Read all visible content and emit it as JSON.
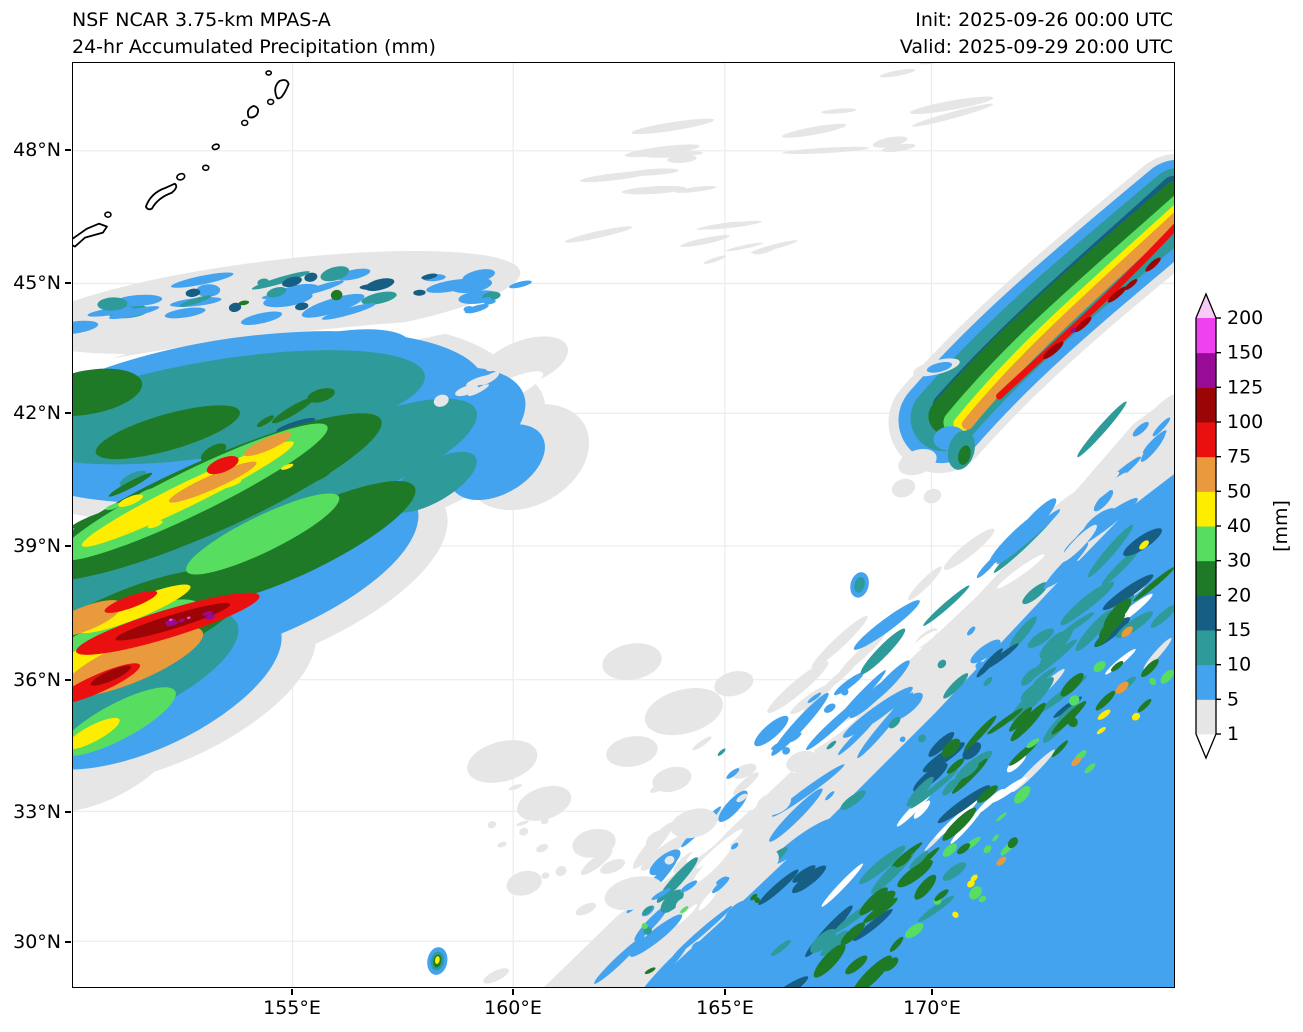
{
  "header": {
    "title_line1": "NSF NCAR 3.75-km MPAS-A",
    "title_line2": "24-hr Accumulated Precipitation (mm)",
    "init_label": "Init: 2025-09-26 00:00 UTC",
    "valid_label": "Valid: 2025-09-29 20:00 UTC"
  },
  "map": {
    "x_tick_labels": [
      "155°E",
      "160°E",
      "165°E",
      "170°E"
    ],
    "y_tick_labels": [
      "48°N",
      "45°N",
      "42°N",
      "39°N",
      "36°N",
      "33°N",
      "30°N"
    ]
  },
  "colorbar": {
    "unit_label": "[mm]",
    "tick_labels": [
      "1",
      "5",
      "10",
      "15",
      "20",
      "30",
      "40",
      "50",
      "75",
      "100",
      "125",
      "150",
      "200"
    ],
    "levels": [
      1,
      5,
      10,
      15,
      20,
      30,
      40,
      50,
      75,
      100,
      125,
      150,
      200
    ],
    "segment_colors": [
      "#e6e6e6",
      "#44a3ef",
      "#2f9a9a",
      "#175e85",
      "#1f7a28",
      "#57de60",
      "#ffed00",
      "#e89a3c",
      "#eb1010",
      "#9c0505",
      "#970b97",
      "#ee42ee"
    ],
    "under_arrow_color": "#ffffff",
    "over_arrow_color": "#f6ccf6"
  },
  "chart_data": {
    "type": "heatmap",
    "title": "NSF NCAR 3.75-km MPAS-A — 24-hr Accumulated Precipitation (mm)",
    "units": "mm",
    "contour_levels": [
      1,
      5,
      10,
      15,
      20,
      30,
      40,
      50,
      75,
      100,
      125,
      150,
      200
    ],
    "x_ticks": [
      "155°E",
      "160°E",
      "165°E",
      "170°E"
    ],
    "y_ticks": [
      "30°N",
      "33°N",
      "36°N",
      "39°N",
      "42°N",
      "45°N",
      "48°N"
    ],
    "legend_position": "right",
    "grid": true
  }
}
